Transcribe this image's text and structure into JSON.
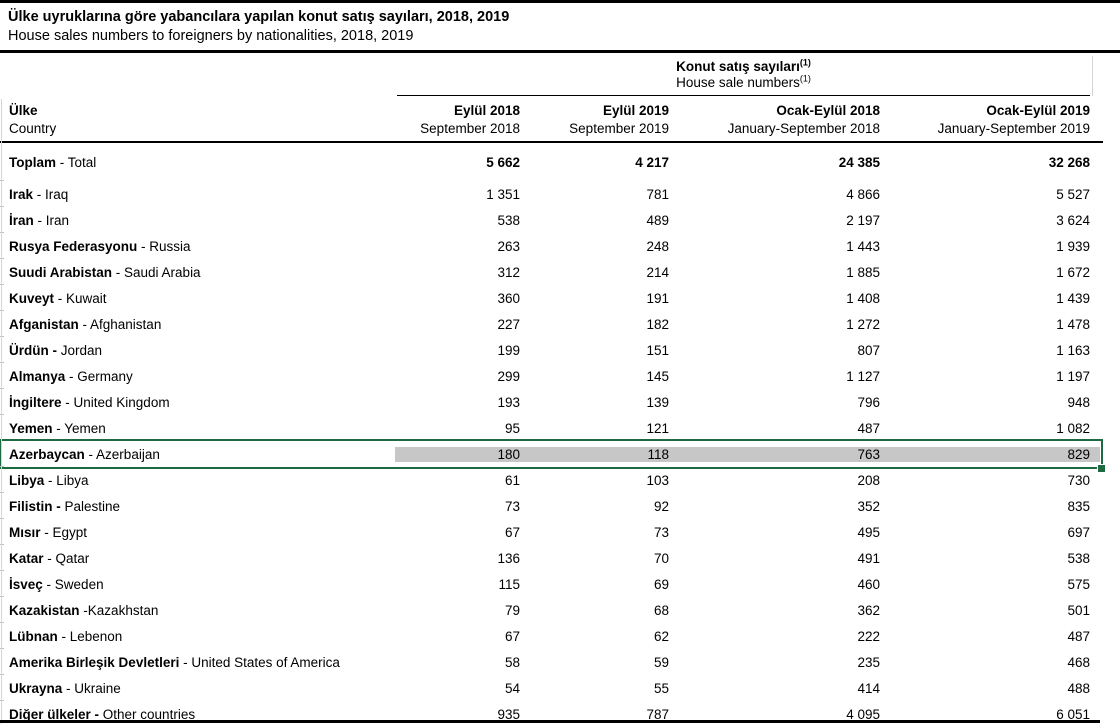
{
  "page": {
    "title_tr": "Ülke uyruklarına göre yabancılara yapılan konut satış sayıları, 2018, 2019",
    "title_en": "House sales numbers to foreigners by nationalities, 2018, 2019"
  },
  "table": {
    "group_header_tr": "Konut satış sayıları",
    "group_header_en": "House sale numbers",
    "footnote_marker": "(1)",
    "country_header_tr": "Ülke",
    "country_header_en": "Country",
    "columns": [
      {
        "tr": "Eylül 2018",
        "en": "September 2018"
      },
      {
        "tr": "Eylül 2019",
        "en": "September 2019"
      },
      {
        "tr": "Ocak-Eylül 2018",
        "en": "January-September 2018"
      },
      {
        "tr": "Ocak-Eylül 2019",
        "en": "January-September 2019"
      }
    ],
    "rows": [
      {
        "tr": "Toplam",
        "en": " - Total",
        "values": [
          "5 662",
          "4 217",
          "24 385",
          "32 268"
        ],
        "is_total": true
      },
      {
        "tr": "Irak",
        "en": " - Iraq",
        "values": [
          "1 351",
          "781",
          "4 866",
          "5 527"
        ]
      },
      {
        "tr": "İran",
        "en": " - Iran",
        "values": [
          "538",
          "489",
          "2 197",
          "3 624"
        ]
      },
      {
        "tr": "Rusya Federasyonu",
        "en": " - Russia",
        "values": [
          "263",
          "248",
          "1 443",
          "1 939"
        ]
      },
      {
        "tr": "Suudi Arabistan",
        "en": " - Saudi Arabia",
        "values": [
          "312",
          "214",
          "1 885",
          "1 672"
        ]
      },
      {
        "tr": "Kuveyt",
        "en": " - Kuwait",
        "values": [
          "360",
          "191",
          "1 408",
          "1 439"
        ]
      },
      {
        "tr": "Afganistan",
        "en": " - Afghanistan",
        "values": [
          "227",
          "182",
          "1 272",
          "1 478"
        ]
      },
      {
        "tr": "Ürdün -",
        "en": " Jordan",
        "values": [
          "199",
          "151",
          "807",
          "1 163"
        ]
      },
      {
        "tr": "Almanya",
        "en": " - Germany",
        "values": [
          "299",
          "145",
          "1 127",
          "1 197"
        ]
      },
      {
        "tr": "İngiltere",
        "en": " - United Kingdom",
        "values": [
          "193",
          "139",
          "796",
          "948"
        ]
      },
      {
        "tr": "Yemen",
        "en": " - Yemen",
        "values": [
          "95",
          "121",
          "487",
          "1 082"
        ]
      },
      {
        "tr": "Azerbaycan",
        "en": " - Azerbaijan",
        "values": [
          "180",
          "118",
          "763",
          "829"
        ],
        "selected": true
      },
      {
        "tr": "Libya",
        "en": " - Libya",
        "values": [
          "61",
          "103",
          "208",
          "730"
        ]
      },
      {
        "tr": "Filistin -",
        "en": " Palestine",
        "values": [
          "73",
          "92",
          "352",
          "835"
        ]
      },
      {
        "tr": "Mısır",
        "en": " - Egypt",
        "values": [
          "67",
          "73",
          "495",
          "697"
        ]
      },
      {
        "tr": "Katar",
        "en": " - Qatar",
        "values": [
          "136",
          "70",
          "491",
          "538"
        ]
      },
      {
        "tr": "İsveç",
        "en": " - Sweden",
        "values": [
          "115",
          "69",
          "460",
          "575"
        ]
      },
      {
        "tr": "Kazakistan",
        "en": " -Kazakhstan",
        "values": [
          "79",
          "68",
          "362",
          "501"
        ]
      },
      {
        "tr": "Lübnan",
        "en": " - Lebenon",
        "values": [
          "67",
          "62",
          "222",
          "487"
        ]
      },
      {
        "tr": "Amerika Birleşik Devletleri",
        "en": " - United States of America",
        "values": [
          "58",
          "59",
          "235",
          "468"
        ]
      },
      {
        "tr": "Ukrayna",
        "en": " - Ukraine",
        "values": [
          "54",
          "55",
          "414",
          "488"
        ]
      },
      {
        "tr": "Diğer ülkeler -",
        "en": " Other countries",
        "values": [
          "935",
          "787",
          "4 095",
          "6 051"
        ]
      }
    ]
  },
  "colors": {
    "selection_green": "#1e6b42",
    "highlight_gray": "#c7c7c7"
  },
  "chart_data": {
    "type": "table",
    "title": "Ülke uyruklarına göre yabancılara yapılan konut satış sayıları, 2018, 2019 / House sales numbers to foreigners by nationalities, 2018, 2019",
    "group_header": "Konut satış sayıları (House sale numbers) (1)",
    "columns": [
      "Ülke - Country",
      "Eylül 2018 / September 2018",
      "Eylül 2019 / September 2019",
      "Ocak-Eylül 2018 / January-September 2018",
      "Ocak-Eylül 2019 / January-September 2019"
    ],
    "rows": [
      [
        "Toplam - Total",
        5662,
        4217,
        24385,
        32268
      ],
      [
        "Irak - Iraq",
        1351,
        781,
        4866,
        5527
      ],
      [
        "İran - Iran",
        538,
        489,
        2197,
        3624
      ],
      [
        "Rusya Federasyonu - Russia",
        263,
        248,
        1443,
        1939
      ],
      [
        "Suudi Arabistan - Saudi Arabia",
        312,
        214,
        1885,
        1672
      ],
      [
        "Kuveyt - Kuwait",
        360,
        191,
        1408,
        1439
      ],
      [
        "Afganistan - Afghanistan",
        227,
        182,
        1272,
        1478
      ],
      [
        "Ürdün - Jordan",
        199,
        151,
        807,
        1163
      ],
      [
        "Almanya - Germany",
        299,
        145,
        1127,
        1197
      ],
      [
        "İngiltere - United Kingdom",
        193,
        139,
        796,
        948
      ],
      [
        "Yemen - Yemen",
        95,
        121,
        487,
        1082
      ],
      [
        "Azerbaycan - Azerbaijan",
        180,
        118,
        763,
        829
      ],
      [
        "Libya - Libya",
        61,
        103,
        208,
        730
      ],
      [
        "Filistin - Palestine",
        73,
        92,
        352,
        835
      ],
      [
        "Mısır - Egypt",
        67,
        73,
        495,
        697
      ],
      [
        "Katar - Qatar",
        136,
        70,
        491,
        538
      ],
      [
        "İsveç - Sweden",
        115,
        69,
        460,
        575
      ],
      [
        "Kazakistan - Kazakhstan",
        79,
        68,
        362,
        501
      ],
      [
        "Lübnan - Lebenon",
        67,
        62,
        222,
        487
      ],
      [
        "Amerika Birleşik Devletleri - United States of America",
        58,
        59,
        235,
        468
      ],
      [
        "Ukrayna - Ukraine",
        54,
        55,
        414,
        488
      ],
      [
        "Diğer ülkeler - Other countries",
        935,
        787,
        4095,
        6051
      ]
    ],
    "highlighted_row": "Azerbaycan - Azerbaijan",
    "notes": "Row 'Azerbaycan' is selected with an Excel-style green selection border; its numeric cells have a gray fill."
  }
}
